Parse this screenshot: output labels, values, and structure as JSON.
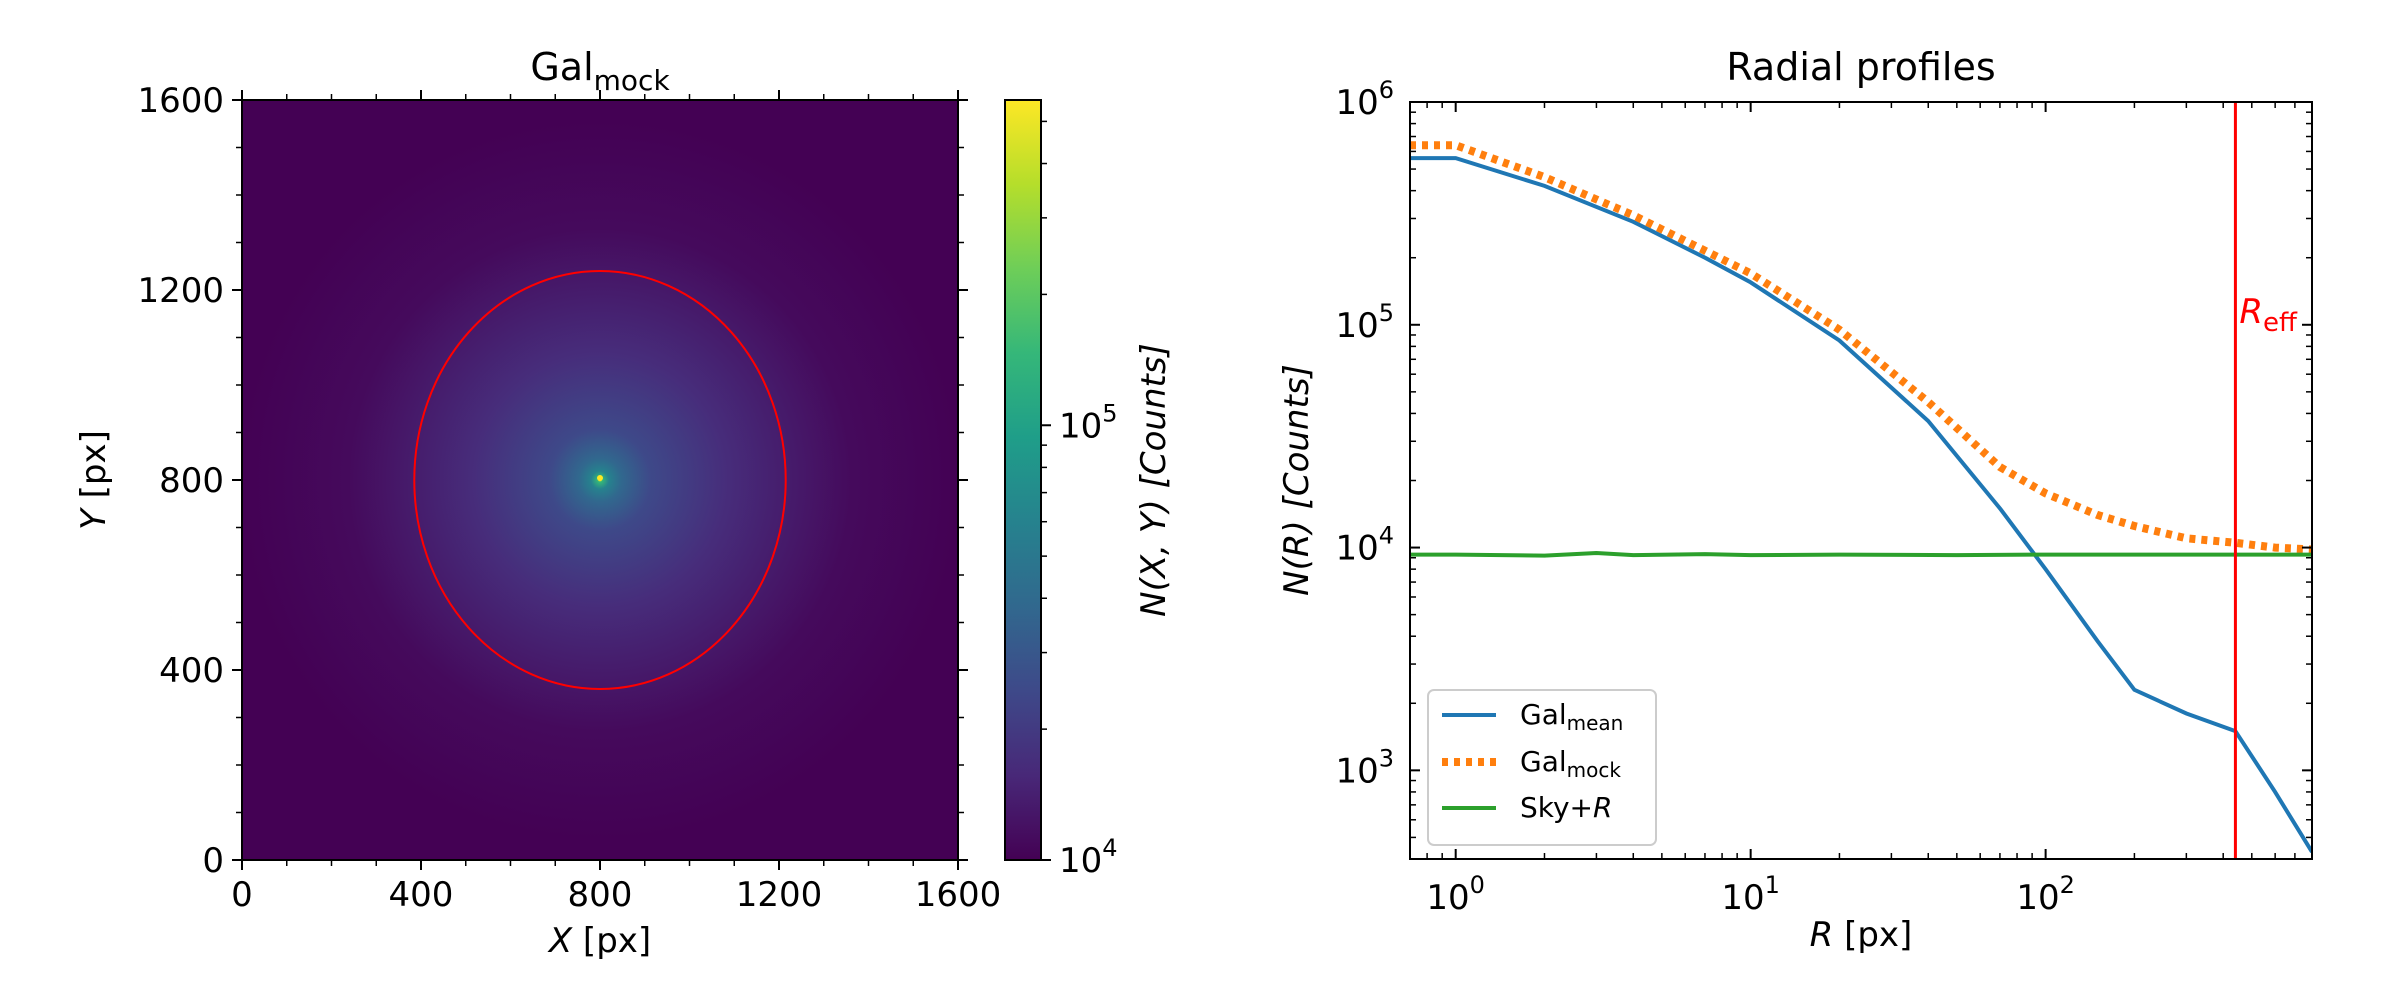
{
  "chart_data": [
    {
      "type": "heatmap",
      "title": {
        "base": "Gal",
        "sub": "mock"
      },
      "xlabel": {
        "var": "X",
        "unit": " [px]"
      },
      "ylabel": {
        "var": "Y",
        "unit": " [px]"
      },
      "xlim": [
        0,
        1600
      ],
      "ylim": [
        0,
        1600
      ],
      "xticks": [
        0,
        400,
        800,
        1200,
        1600
      ],
      "yticks": [
        0,
        400,
        800,
        1200,
        1600
      ],
      "image": {
        "center": [
          800,
          800
        ],
        "profile": "sersic",
        "peak_counts": 560000,
        "background_counts": 10000
      },
      "ellipse": {
        "center": [
          800,
          800
        ],
        "semi_axes": [
          415,
          440
        ],
        "color": "#ff0000"
      },
      "colorbar": {
        "label": "N(X, Y) [Counts]",
        "scale": "log",
        "range": [
          10000,
          560000
        ],
        "ticks": [
          {
            "value": 10000,
            "base": "10",
            "exp": "4"
          },
          {
            "value": 100000,
            "base": "10",
            "exp": "5"
          }
        ],
        "colormap": [
          "#440154",
          "#482878",
          "#3e4989",
          "#31688e",
          "#26828e",
          "#1f9e89",
          "#35b779",
          "#6ece58",
          "#b5de2b",
          "#fde725"
        ]
      }
    },
    {
      "type": "line",
      "title": "Radial profiles",
      "xlabel": {
        "var": "R",
        "unit": " [px]"
      },
      "ylabel": "N(R) [Counts]",
      "xscale": "log",
      "yscale": "log",
      "xlim": [
        0.7,
        800
      ],
      "ylim": [
        400,
        1000000
      ],
      "xticks": [
        {
          "value": 1,
          "base": "10",
          "exp": "0"
        },
        {
          "value": 10,
          "base": "10",
          "exp": "1"
        },
        {
          "value": 100,
          "base": "10",
          "exp": "2"
        }
      ],
      "yticks": [
        {
          "value": 1000,
          "base": "10",
          "exp": "3"
        },
        {
          "value": 10000,
          "base": "10",
          "exp": "4"
        },
        {
          "value": 100000,
          "base": "10",
          "exp": "5"
        },
        {
          "value": 1000000,
          "base": "10",
          "exp": "6"
        }
      ],
      "vline": {
        "x": 440,
        "label": {
          "base": "R",
          "sub": "eff"
        },
        "color": "#ff0000"
      },
      "legend_position": "lower-left",
      "series": [
        {
          "name": {
            "base": "Gal",
            "sub": "mean"
          },
          "color": "#1f77b4",
          "style": "solid",
          "x": [
            0.7,
            1,
            2,
            4,
            7,
            10,
            20,
            40,
            70,
            100,
            150,
            200,
            300,
            440,
            600,
            800
          ],
          "y": [
            560000,
            560000,
            420000,
            290000,
            200000,
            155000,
            85000,
            37000,
            15000,
            8000,
            3800,
            2300,
            1800,
            1500,
            800,
            430
          ]
        },
        {
          "name": {
            "base": "Gal",
            "sub": "mock"
          },
          "color": "#ff7f0e",
          "style": "dotted",
          "x": [
            0.7,
            1,
            2,
            4,
            7,
            10,
            20,
            40,
            70,
            100,
            150,
            200,
            300,
            440,
            600,
            800
          ],
          "y": [
            640000,
            640000,
            460000,
            310000,
            215000,
            170000,
            95000,
            45000,
            23000,
            17500,
            14000,
            12500,
            11000,
            10500,
            10000,
            9800
          ]
        },
        {
          "name": {
            "base": "Sky+",
            "var": "R"
          },
          "color": "#2ca02c",
          "style": "solid",
          "x": [
            0.7,
            1,
            2,
            3,
            4,
            7,
            10,
            20,
            50,
            100,
            200,
            400,
            800
          ],
          "y": [
            9300,
            9300,
            9200,
            9450,
            9250,
            9350,
            9250,
            9300,
            9250,
            9300,
            9300,
            9300,
            9300
          ]
        }
      ]
    }
  ]
}
